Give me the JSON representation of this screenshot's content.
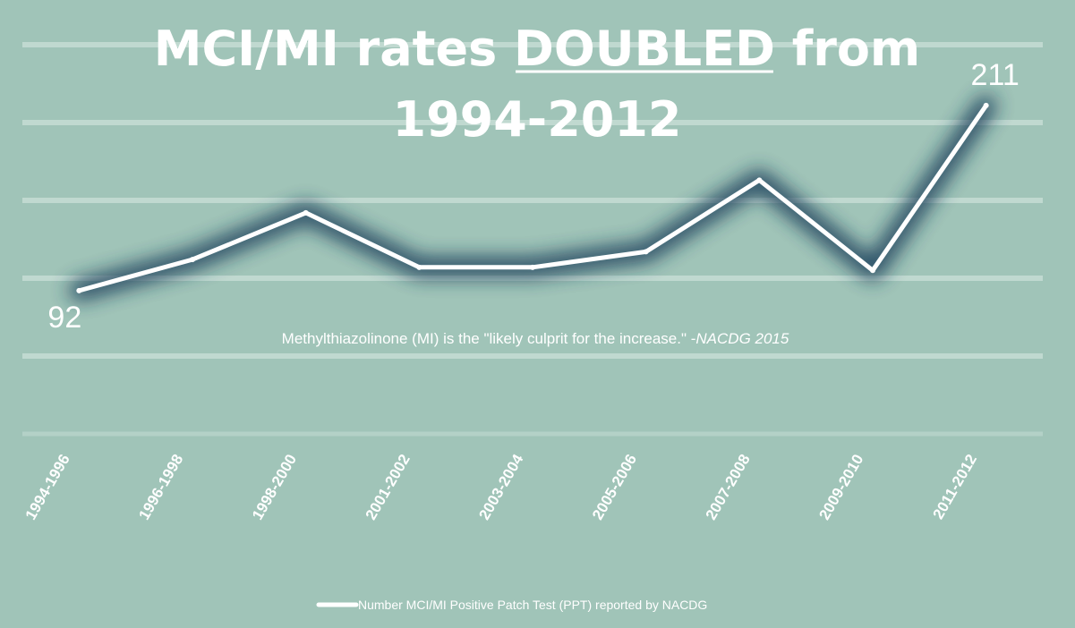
{
  "chart_data": {
    "type": "line",
    "title_part1": "MCI/MI rates ",
    "title_emphasis": "DOUBLED",
    "title_part2": " from",
    "title_line2": "1994-2012",
    "categories": [
      "1994-1996",
      "1996-1998",
      "1998-2000",
      "2001-2002",
      "2003-2004",
      "2005-2006",
      "2007-2008",
      "2009-2010",
      "2011-2012"
    ],
    "series": [
      {
        "name": "Number MCI/MI Positive Patch Test (PPT) reported by NACDG",
        "values": [
          92,
          112,
          142,
          107,
          107,
          117,
          163,
          105,
          211
        ]
      }
    ],
    "data_labels": [
      {
        "index": 0,
        "text": "92"
      },
      {
        "index": 8,
        "text": "211"
      }
    ],
    "annotation": {
      "quote": "Methylthiazolinone (MI) is the \"likely culprit for the increase.\" -",
      "source": "NACDG 2015"
    },
    "ylim": [
      0,
      250
    ],
    "grid": true,
    "legend_position": "bottom",
    "colors": {
      "background": "#a0c4b8",
      "line": "#ffffff",
      "glow": "#1f3f5c",
      "grid": "#c6ddd5"
    }
  }
}
